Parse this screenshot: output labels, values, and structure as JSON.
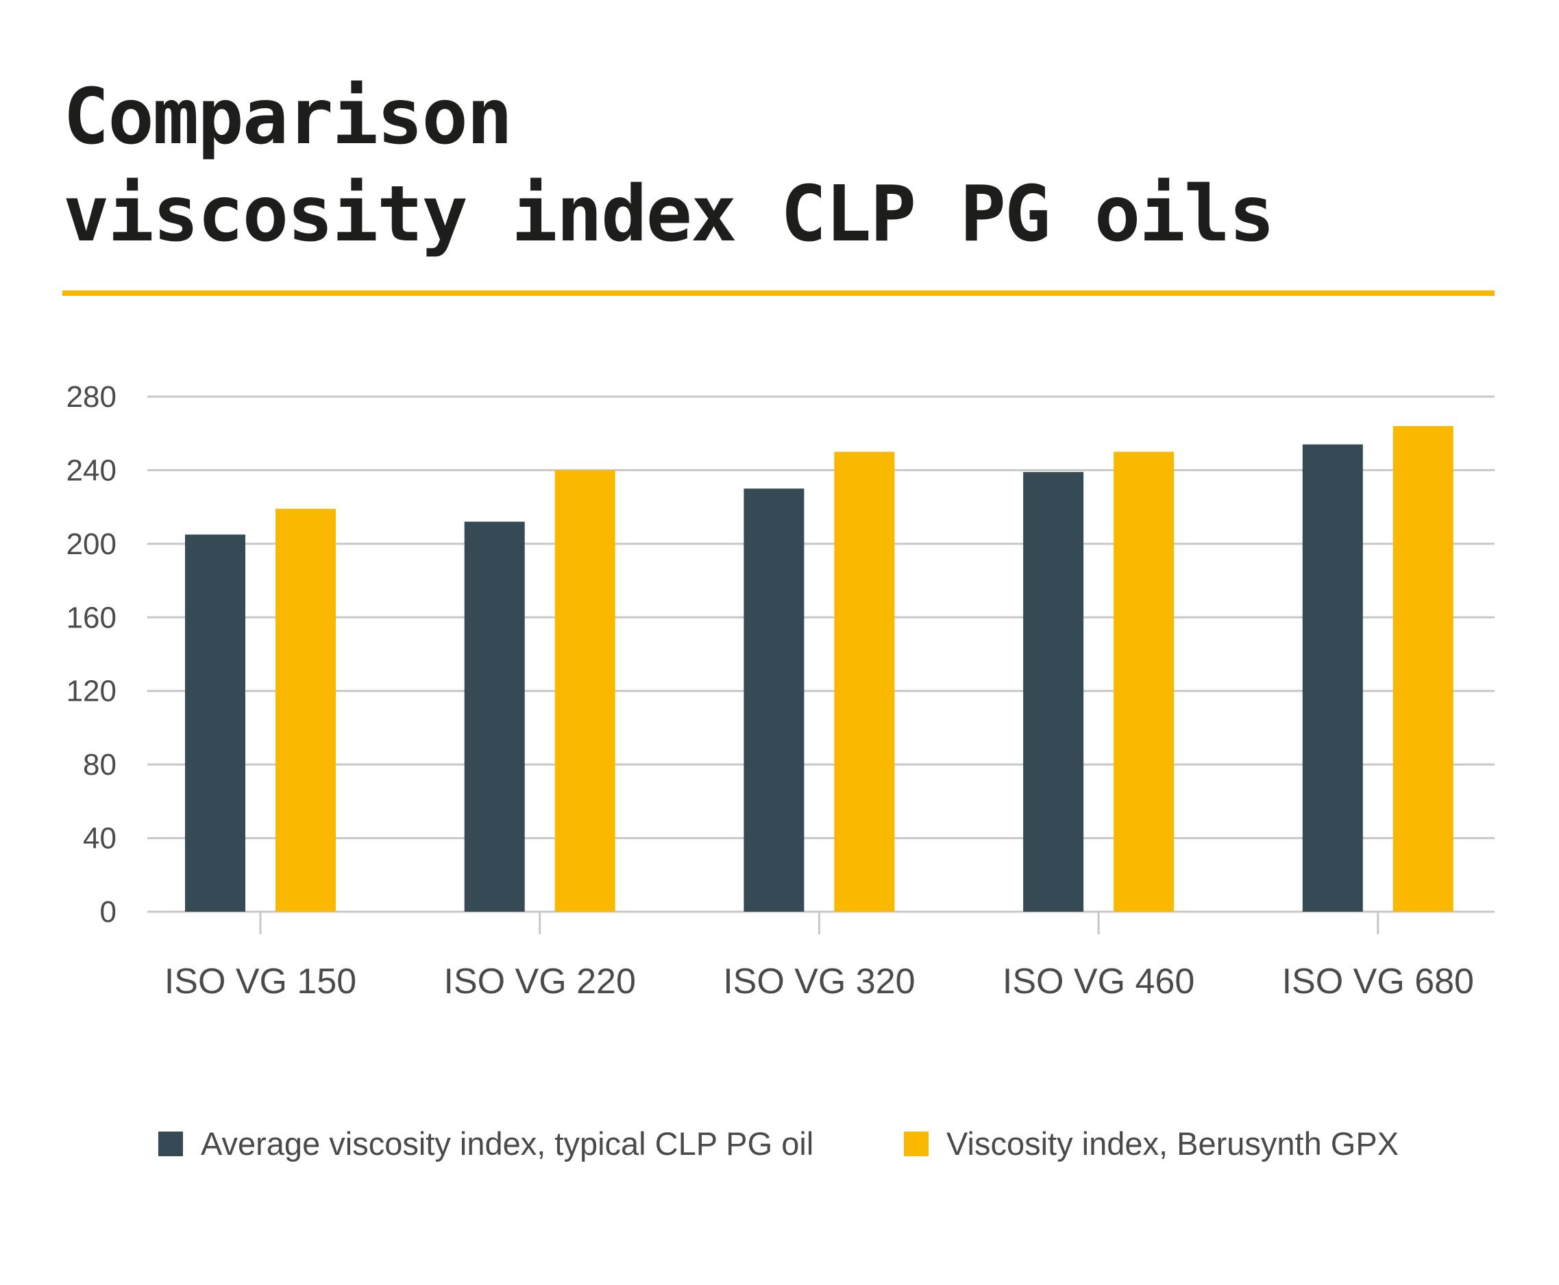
{
  "title_lines": [
    "Comparison",
    "viscosity index CLP PG oils"
  ],
  "colors": {
    "rule": "#f9b800",
    "dark": "#364a56",
    "yellow": "#fab900",
    "grid": "#c8c6c6",
    "text": "#4a4a4a"
  },
  "chart_data": {
    "type": "bar",
    "title": "Comparison viscosity index CLP PG oils",
    "categories": [
      "ISO VG 150",
      "ISO VG 220",
      "ISO VG 320",
      "ISO VG 460",
      "ISO VG 680"
    ],
    "series": [
      {
        "name": "Average viscosity index, typical CLP PG oil",
        "color": "#364a56",
        "values": [
          205,
          212,
          230,
          239,
          254
        ]
      },
      {
        "name": "Viscosity index, Berusynth GPX",
        "color": "#fab900",
        "values": [
          219,
          240,
          250,
          250,
          264
        ]
      }
    ],
    "yticks": [
      0,
      40,
      80,
      120,
      160,
      200,
      240,
      280
    ],
    "ylim": [
      0,
      280
    ],
    "grid": true,
    "legend": "bottom"
  }
}
